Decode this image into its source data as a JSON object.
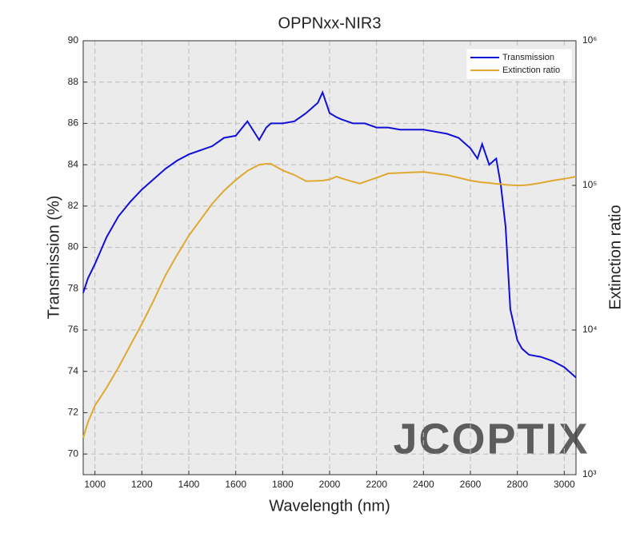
{
  "chart_data": {
    "type": "line",
    "title": "OPPNxx-NIR3",
    "xlabel": "Wavelength (nm)",
    "ylabel": "Transmission (%)",
    "y2label": "Extinction ratio",
    "watermark": "JCOPTIX",
    "x": [
      950,
      970,
      1000,
      1050,
      1100,
      1150,
      1200,
      1250,
      1300,
      1350,
      1400,
      1450,
      1500,
      1550,
      1600,
      1650,
      1700,
      1730,
      1750,
      1800,
      1850,
      1900,
      1950,
      1970,
      2000,
      2030,
      2050,
      2100,
      2130,
      2150,
      2200,
      2250,
      2300,
      2400,
      2500,
      2550,
      2600,
      2630,
      2650,
      2680,
      2700,
      2710,
      2730,
      2750,
      2770,
      2800,
      2820,
      2850,
      2900,
      2950,
      3000,
      3050
    ],
    "series": [
      {
        "name": "Transmission",
        "color": "#1010d8",
        "values": [
          77.8,
          78.5,
          79.2,
          80.5,
          81.5,
          82.2,
          82.8,
          83.3,
          83.8,
          84.2,
          84.5,
          84.7,
          84.9,
          85.3,
          85.4,
          86.1,
          85.2,
          85.8,
          86.0,
          86.0,
          86.1,
          86.5,
          87.0,
          87.5,
          86.5,
          86.3,
          86.2,
          86.0,
          86.0,
          86.0,
          85.8,
          85.8,
          85.7,
          85.7,
          85.5,
          85.3,
          84.8,
          84.3,
          85.0,
          84.0,
          84.2,
          84.3,
          83.0,
          81.0,
          77.0,
          75.5,
          75.1,
          74.8,
          74.7,
          74.5,
          74.2,
          73.7
        ]
      },
      {
        "name": "Extinction ratio",
        "color": "#e0a830",
        "axis": "y2",
        "values": [
          1800,
          2300,
          3000,
          4000,
          5500,
          7800,
          11000,
          16000,
          23800,
          33000,
          44900,
          58000,
          74700,
          92000,
          109000,
          126000,
          139000,
          141000,
          141000,
          127000,
          118000,
          107000,
          107500,
          108000,
          110000,
          115000,
          112000,
          106000,
          103000,
          106000,
          113000,
          121000,
          122000,
          124000,
          118000,
          113000,
          108000,
          106000,
          105000,
          104000,
          103000,
          102500,
          102000,
          101000,
          100500,
          100000,
          100000,
          101000,
          104000,
          108000,
          111000,
          115000
        ]
      }
    ],
    "xlim": [
      950,
      3050
    ],
    "xticks": [
      1000,
      1200,
      1400,
      1600,
      1800,
      2000,
      2200,
      2400,
      2600,
      2800,
      3000
    ],
    "ylim": [
      69,
      90
    ],
    "yticks": [
      70,
      72,
      74,
      76,
      78,
      80,
      82,
      84,
      86,
      88,
      90
    ],
    "y2lim": [
      1000,
      1000000
    ],
    "y2log": true,
    "y2ticks": [
      {
        "value": 1000,
        "label": "10³"
      },
      {
        "value": 10000,
        "label": "10⁴"
      },
      {
        "value": 100000,
        "label": "10⁵"
      },
      {
        "value": 1000000,
        "label": "10⁶"
      }
    ],
    "grid": true,
    "legend": "upper right"
  }
}
